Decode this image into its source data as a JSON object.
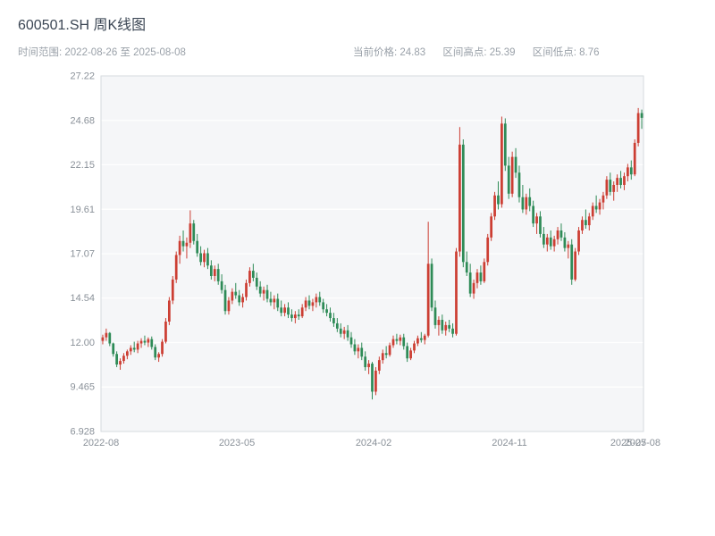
{
  "header": {
    "title": "600501.SH 周K线图",
    "time_range": "时间范围: 2022-08-26 至 2025-08-08",
    "stats": [
      "当前价格: 24.83",
      "区间高点: 25.39",
      "区间低点: 8.76"
    ]
  },
  "chart_data": {
    "type": "candlestick",
    "title": "600501.SH 周K线图",
    "symbol": "600501.SH",
    "interval": "weekly",
    "date_start": "2022-08-26",
    "date_end": "2025-08-08",
    "current_price": 24.83,
    "range_high": 25.39,
    "range_low": 8.76,
    "up_color": "#cc3e33",
    "down_color": "#2e8b57",
    "plot_bg": "#f5f6f8",
    "grid_color": "#ffffff",
    "frame_color": "#d5dade",
    "tick_color": "#8a9199",
    "grid": true,
    "legend": false,
    "y_axis": {
      "min": 6.928,
      "max": 27.22,
      "ticks": [
        "27.22",
        "24.68",
        "22.15",
        "19.61",
        "17.07",
        "14.54",
        "12.00",
        "9.465",
        "6.928"
      ]
    },
    "x_axis": {
      "ticks": [
        {
          "label": "2022-08",
          "pos": 0.0
        },
        {
          "label": "2023-05",
          "pos": 0.2504
        },
        {
          "label": "2024-02",
          "pos": 0.5025
        },
        {
          "label": "2024-11",
          "pos": 0.7529
        },
        {
          "label": "2025-07",
          "pos": 0.972
        },
        {
          "label": "2025-08",
          "pos": 0.998
        }
      ]
    },
    "candles": [
      [
        12.1,
        12.45,
        11.9,
        12.3
      ],
      [
        12.3,
        12.8,
        12.1,
        12.55
      ],
      [
        12.55,
        12.6,
        11.8,
        11.95
      ],
      [
        11.95,
        12.0,
        11.2,
        11.35
      ],
      [
        11.35,
        11.5,
        10.6,
        10.75
      ],
      [
        10.75,
        11.1,
        10.45,
        10.95
      ],
      [
        10.95,
        11.4,
        10.8,
        11.25
      ],
      [
        11.25,
        11.6,
        11.05,
        11.5
      ],
      [
        11.5,
        11.85,
        11.3,
        11.7
      ],
      [
        11.7,
        12.05,
        11.45,
        11.6
      ],
      [
        11.6,
        12.1,
        11.4,
        11.95
      ],
      [
        11.95,
        12.25,
        11.7,
        12.1
      ],
      [
        12.1,
        12.4,
        11.85,
        12.0
      ],
      [
        12.0,
        12.3,
        11.75,
        12.2
      ],
      [
        12.2,
        12.35,
        11.6,
        11.75
      ],
      [
        11.75,
        11.9,
        11.0,
        11.15
      ],
      [
        11.15,
        11.45,
        10.9,
        11.35
      ],
      [
        11.35,
        12.2,
        11.2,
        12.05
      ],
      [
        12.05,
        13.4,
        11.95,
        13.2
      ],
      [
        13.2,
        14.6,
        13.0,
        14.4
      ],
      [
        14.4,
        15.8,
        14.2,
        15.6
      ],
      [
        15.6,
        17.2,
        15.4,
        17.0
      ],
      [
        17.0,
        18.1,
        16.5,
        17.8
      ],
      [
        17.8,
        18.4,
        17.2,
        17.5
      ],
      [
        17.5,
        18.0,
        16.8,
        17.7
      ],
      [
        17.7,
        19.55,
        17.4,
        18.8
      ],
      [
        18.8,
        19.0,
        17.6,
        17.8
      ],
      [
        17.8,
        18.2,
        16.9,
        17.1
      ],
      [
        17.1,
        17.5,
        16.4,
        16.6
      ],
      [
        16.6,
        17.3,
        16.3,
        17.1
      ],
      [
        17.1,
        17.4,
        16.2,
        16.4
      ],
      [
        16.4,
        16.7,
        15.6,
        15.8
      ],
      [
        15.8,
        16.4,
        15.5,
        16.2
      ],
      [
        16.2,
        16.5,
        15.3,
        15.5
      ],
      [
        15.5,
        15.9,
        14.8,
        15.0
      ],
      [
        15.0,
        15.3,
        13.6,
        13.8
      ],
      [
        13.8,
        14.6,
        13.6,
        14.4
      ],
      [
        14.4,
        15.1,
        14.2,
        14.9
      ],
      [
        14.9,
        15.4,
        14.5,
        14.7
      ],
      [
        14.7,
        15.0,
        14.1,
        14.3
      ],
      [
        14.3,
        14.8,
        14.0,
        14.6
      ],
      [
        14.6,
        15.6,
        14.4,
        15.4
      ],
      [
        15.4,
        16.3,
        15.2,
        16.1
      ],
      [
        16.1,
        16.5,
        15.5,
        15.7
      ],
      [
        15.7,
        16.0,
        15.0,
        15.2
      ],
      [
        15.2,
        15.5,
        14.6,
        14.8
      ],
      [
        14.8,
        15.2,
        14.4,
        15.0
      ],
      [
        15.0,
        15.3,
        14.3,
        14.5
      ],
      [
        14.5,
        14.9,
        14.1,
        14.3
      ],
      [
        14.3,
        14.7,
        13.9,
        14.5
      ],
      [
        14.5,
        14.8,
        13.8,
        14.0
      ],
      [
        14.0,
        14.4,
        13.5,
        13.7
      ],
      [
        13.7,
        14.2,
        13.5,
        14.0
      ],
      [
        14.0,
        14.3,
        13.4,
        13.6
      ],
      [
        13.6,
        13.9,
        13.2,
        13.4
      ],
      [
        13.4,
        13.8,
        13.1,
        13.6
      ],
      [
        13.6,
        13.9,
        13.3,
        13.5
      ],
      [
        13.5,
        14.2,
        13.4,
        14.0
      ],
      [
        14.0,
        14.6,
        13.8,
        14.4
      ],
      [
        14.4,
        14.7,
        13.9,
        14.1
      ],
      [
        14.1,
        14.5,
        13.8,
        14.3
      ],
      [
        14.3,
        14.8,
        14.0,
        14.6
      ],
      [
        14.6,
        14.9,
        14.1,
        14.3
      ],
      [
        14.3,
        14.5,
        13.7,
        13.9
      ],
      [
        13.9,
        14.2,
        13.5,
        13.7
      ],
      [
        13.7,
        14.0,
        13.2,
        13.4
      ],
      [
        13.4,
        13.7,
        12.9,
        13.1
      ],
      [
        13.1,
        13.4,
        12.6,
        12.8
      ],
      [
        12.8,
        13.1,
        12.3,
        12.5
      ],
      [
        12.5,
        12.9,
        12.2,
        12.7
      ],
      [
        12.7,
        13.0,
        12.1,
        12.3
      ],
      [
        12.3,
        12.6,
        11.7,
        11.9
      ],
      [
        11.9,
        12.2,
        11.3,
        11.5
      ],
      [
        11.5,
        11.9,
        11.1,
        11.7
      ],
      [
        11.7,
        12.0,
        11.0,
        11.2
      ],
      [
        11.2,
        11.5,
        10.4,
        10.6
      ],
      [
        10.6,
        11.0,
        10.2,
        10.8
      ],
      [
        10.8,
        10.9,
        8.76,
        9.2
      ],
      [
        9.2,
        10.6,
        9.0,
        10.4
      ],
      [
        10.4,
        11.2,
        10.2,
        11.0
      ],
      [
        11.0,
        11.6,
        10.8,
        11.4
      ],
      [
        11.4,
        11.8,
        11.1,
        11.3
      ],
      [
        11.3,
        12.0,
        11.2,
        11.85
      ],
      [
        11.85,
        12.4,
        11.7,
        12.2
      ],
      [
        12.2,
        12.5,
        11.9,
        12.1
      ],
      [
        12.1,
        12.45,
        11.85,
        12.3
      ],
      [
        12.3,
        12.5,
        11.6,
        11.8
      ],
      [
        11.8,
        12.0,
        10.9,
        11.1
      ],
      [
        11.1,
        11.7,
        11.0,
        11.55
      ],
      [
        11.55,
        12.1,
        11.4,
        11.95
      ],
      [
        11.95,
        12.4,
        11.8,
        12.25
      ],
      [
        12.25,
        12.6,
        12.0,
        12.15
      ],
      [
        12.15,
        12.5,
        11.9,
        12.4
      ],
      [
        12.4,
        18.9,
        12.3,
        16.5
      ],
      [
        16.5,
        16.8,
        13.8,
        14.0
      ],
      [
        14.0,
        14.4,
        12.8,
        13.0
      ],
      [
        13.0,
        13.5,
        12.4,
        13.3
      ],
      [
        13.3,
        13.6,
        12.5,
        12.7
      ],
      [
        12.7,
        13.2,
        12.4,
        13.0
      ],
      [
        13.0,
        13.3,
        12.6,
        12.8
      ],
      [
        12.8,
        13.1,
        12.3,
        12.5
      ],
      [
        12.5,
        17.4,
        12.4,
        17.2
      ],
      [
        17.2,
        24.3,
        16.9,
        23.3
      ],
      [
        23.3,
        23.6,
        16.3,
        16.6
      ],
      [
        16.6,
        17.2,
        15.8,
        16.0
      ],
      [
        16.0,
        16.5,
        14.6,
        14.8
      ],
      [
        14.8,
        15.6,
        14.5,
        15.4
      ],
      [
        15.4,
        16.2,
        15.1,
        16.0
      ],
      [
        16.0,
        16.4,
        15.3,
        15.5
      ],
      [
        15.5,
        16.8,
        15.4,
        16.6
      ],
      [
        16.6,
        18.2,
        16.4,
        18.0
      ],
      [
        18.0,
        19.4,
        17.8,
        19.2
      ],
      [
        19.2,
        20.6,
        19.0,
        20.4
      ],
      [
        20.4,
        21.2,
        19.6,
        19.9
      ],
      [
        19.9,
        24.9,
        19.7,
        24.5
      ],
      [
        24.5,
        24.8,
        21.8,
        22.1
      ],
      [
        22.1,
        22.6,
        20.2,
        20.5
      ],
      [
        20.5,
        22.9,
        20.3,
        22.6
      ],
      [
        22.6,
        23.1,
        21.4,
        21.7
      ],
      [
        21.7,
        22.1,
        20.0,
        20.3
      ],
      [
        20.3,
        21.0,
        19.4,
        19.6
      ],
      [
        19.6,
        20.5,
        19.3,
        20.3
      ],
      [
        20.3,
        20.8,
        19.5,
        19.8
      ],
      [
        19.8,
        20.1,
        18.6,
        18.8
      ],
      [
        18.8,
        19.4,
        18.2,
        19.2
      ],
      [
        19.2,
        19.5,
        18.0,
        18.2
      ],
      [
        18.2,
        18.6,
        17.4,
        17.6
      ],
      [
        17.6,
        18.2,
        17.2,
        18.0
      ],
      [
        18.0,
        18.4,
        17.3,
        17.5
      ],
      [
        17.5,
        18.1,
        17.2,
        17.9
      ],
      [
        17.9,
        18.6,
        17.6,
        18.4
      ],
      [
        18.4,
        18.8,
        17.8,
        18.0
      ],
      [
        18.0,
        18.3,
        17.2,
        17.4
      ],
      [
        17.4,
        17.8,
        16.8,
        17.6
      ],
      [
        17.6,
        17.9,
        15.3,
        15.6
      ],
      [
        15.6,
        17.4,
        15.5,
        17.2
      ],
      [
        17.2,
        18.6,
        17.0,
        18.4
      ],
      [
        18.4,
        19.2,
        18.2,
        19.0
      ],
      [
        19.0,
        19.6,
        18.5,
        18.7
      ],
      [
        18.7,
        19.4,
        18.4,
        19.2
      ],
      [
        19.2,
        20.0,
        19.0,
        19.8
      ],
      [
        19.8,
        20.4,
        19.4,
        19.6
      ],
      [
        19.6,
        20.2,
        19.3,
        20.0
      ],
      [
        20.0,
        20.6,
        19.6,
        20.4
      ],
      [
        20.4,
        21.5,
        20.2,
        21.3
      ],
      [
        21.3,
        21.7,
        20.4,
        20.6
      ],
      [
        20.6,
        21.2,
        20.1,
        21.0
      ],
      [
        21.0,
        21.6,
        20.6,
        21.4
      ],
      [
        21.4,
        21.8,
        20.8,
        21.0
      ],
      [
        21.0,
        21.7,
        20.7,
        21.5
      ],
      [
        21.5,
        22.2,
        21.2,
        22.0
      ],
      [
        22.0,
        22.4,
        21.3,
        21.6
      ],
      [
        21.6,
        23.6,
        21.5,
        23.4
      ],
      [
        23.4,
        25.39,
        23.2,
        25.1
      ],
      [
        25.1,
        25.3,
        24.2,
        24.83
      ]
    ]
  }
}
